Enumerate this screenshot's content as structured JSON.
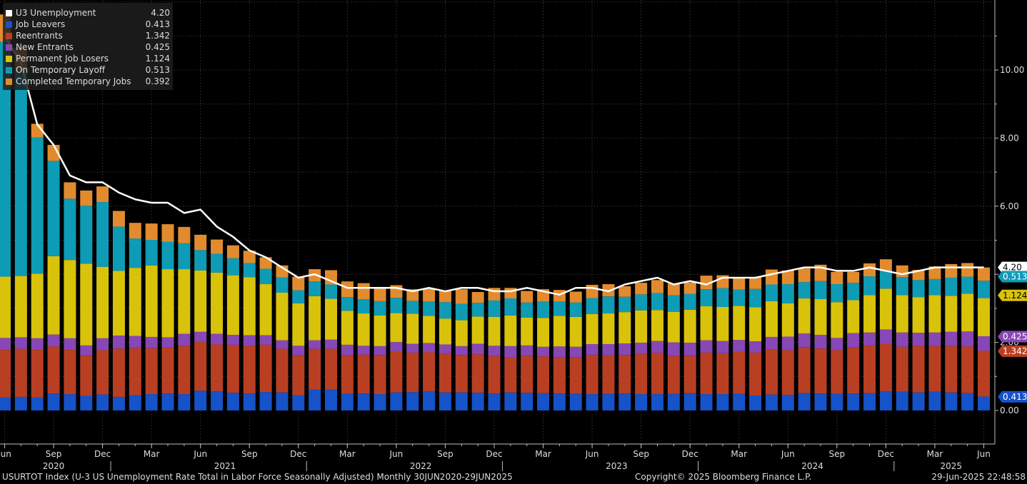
{
  "chart_data": {
    "type": "bar",
    "stacked": true,
    "title": "",
    "xlabel": "",
    "ylabel": "",
    "ylim": [
      0,
      12
    ],
    "grid": true,
    "legend_placement": "top-left",
    "y_ticks": [
      "0.00",
      "2.00",
      "4.00",
      "6.00",
      "8.00",
      "10.00"
    ],
    "x_tick_labels": [
      "Jun",
      "Sep",
      "Dec",
      "Mar",
      "Jun",
      "Sep",
      "Dec",
      "Mar",
      "Jun",
      "Sep",
      "Dec",
      "Mar",
      "Jun",
      "Sep",
      "Dec",
      "Mar",
      "Jun",
      "Sep",
      "Dec",
      "Mar",
      "Jun"
    ],
    "year_labels": [
      "2020",
      "2021",
      "2022",
      "2023",
      "2024",
      "2025"
    ],
    "categories": [
      "2020-06",
      "2020-07",
      "2020-08",
      "2020-09",
      "2020-10",
      "2020-11",
      "2020-12",
      "2021-01",
      "2021-02",
      "2021-03",
      "2021-04",
      "2021-05",
      "2021-06",
      "2021-07",
      "2021-08",
      "2021-09",
      "2021-10",
      "2021-11",
      "2021-12",
      "2022-01",
      "2022-02",
      "2022-03",
      "2022-04",
      "2022-05",
      "2022-06",
      "2022-07",
      "2022-08",
      "2022-09",
      "2022-10",
      "2022-11",
      "2022-12",
      "2023-01",
      "2023-02",
      "2023-03",
      "2023-04",
      "2023-05",
      "2023-06",
      "2023-07",
      "2023-08",
      "2023-09",
      "2023-10",
      "2023-11",
      "2023-12",
      "2024-01",
      "2024-02",
      "2024-03",
      "2024-04",
      "2024-05",
      "2024-06",
      "2024-07",
      "2024-08",
      "2024-09",
      "2024-10",
      "2024-11",
      "2024-12",
      "2025-01",
      "2025-02",
      "2025-03",
      "2025-04",
      "2025-05",
      "2025-06"
    ],
    "series": [
      {
        "name": "Job Leavers",
        "color": "#1652c8",
        "values": [
          0.38,
          0.4,
          0.38,
          0.5,
          0.48,
          0.43,
          0.47,
          0.4,
          0.45,
          0.48,
          0.5,
          0.48,
          0.58,
          0.56,
          0.52,
          0.5,
          0.54,
          0.53,
          0.45,
          0.61,
          0.61,
          0.49,
          0.5,
          0.48,
          0.53,
          0.54,
          0.56,
          0.53,
          0.53,
          0.52,
          0.5,
          0.53,
          0.52,
          0.51,
          0.5,
          0.49,
          0.48,
          0.49,
          0.5,
          0.48,
          0.48,
          0.49,
          0.51,
          0.48,
          0.48,
          0.49,
          0.44,
          0.47,
          0.46,
          0.51,
          0.5,
          0.49,
          0.5,
          0.51,
          0.56,
          0.55,
          0.53,
          0.55,
          0.53,
          0.51,
          0.41
        ]
      },
      {
        "name": "Reentrants",
        "color": "#b93f22",
        "values": [
          1.4,
          1.41,
          1.4,
          1.38,
          1.3,
          1.18,
          1.3,
          1.42,
          1.38,
          1.35,
          1.35,
          1.42,
          1.43,
          1.38,
          1.4,
          1.4,
          1.39,
          1.28,
          1.17,
          1.2,
          1.2,
          1.13,
          1.14,
          1.15,
          1.2,
          1.16,
          1.15,
          1.13,
          1.1,
          1.13,
          1.1,
          1.03,
          1.09,
          1.08,
          1.06,
          1.08,
          1.15,
          1.13,
          1.13,
          1.18,
          1.21,
          1.11,
          1.1,
          1.22,
          1.2,
          1.24,
          1.26,
          1.32,
          1.31,
          1.35,
          1.32,
          1.28,
          1.35,
          1.4,
          1.4,
          1.32,
          1.37,
          1.34,
          1.36,
          1.37,
          1.34
        ]
      },
      {
        "name": "New Entrants",
        "color": "#8747b5",
        "values": [
          0.35,
          0.34,
          0.34,
          0.35,
          0.34,
          0.3,
          0.35,
          0.38,
          0.36,
          0.33,
          0.3,
          0.35,
          0.3,
          0.31,
          0.3,
          0.31,
          0.28,
          0.25,
          0.28,
          0.25,
          0.27,
          0.31,
          0.26,
          0.26,
          0.28,
          0.26,
          0.27,
          0.28,
          0.26,
          0.31,
          0.3,
          0.33,
          0.3,
          0.28,
          0.32,
          0.3,
          0.32,
          0.33,
          0.34,
          0.33,
          0.35,
          0.4,
          0.38,
          0.36,
          0.36,
          0.34,
          0.33,
          0.37,
          0.4,
          0.4,
          0.4,
          0.36,
          0.42,
          0.38,
          0.42,
          0.42,
          0.38,
          0.4,
          0.42,
          0.44,
          0.43
        ]
      },
      {
        "name": "Permanent Job Losers",
        "color": "#d9c20a",
        "values": [
          1.8,
          1.8,
          1.9,
          2.3,
          2.3,
          2.4,
          2.1,
          1.9,
          2.0,
          2.1,
          2.0,
          1.9,
          1.8,
          1.8,
          1.75,
          1.7,
          1.5,
          1.4,
          1.25,
          1.3,
          1.2,
          1.0,
          0.95,
          0.9,
          0.85,
          0.88,
          0.8,
          0.76,
          0.76,
          0.8,
          0.85,
          0.9,
          0.82,
          0.85,
          0.9,
          0.88,
          0.88,
          0.9,
          0.92,
          0.95,
          0.91,
          0.9,
          0.97,
          1.0,
          1.0,
          1.0,
          1.0,
          1.05,
          0.98,
          1.03,
          1.05,
          1.05,
          0.97,
          1.1,
          1.2,
          1.1,
          1.05,
          1.1,
          1.06,
          1.11,
          1.12
        ]
      },
      {
        "name": "On Temporary Layoff",
        "color": "#0e9bb5",
        "values": [
          6.9,
          6.0,
          4.0,
          2.8,
          1.8,
          1.7,
          1.9,
          1.3,
          0.86,
          0.75,
          0.8,
          0.76,
          0.6,
          0.55,
          0.5,
          0.42,
          0.45,
          0.45,
          0.38,
          0.43,
          0.42,
          0.4,
          0.42,
          0.42,
          0.45,
          0.38,
          0.42,
          0.48,
          0.48,
          0.4,
          0.48,
          0.5,
          0.44,
          0.48,
          0.42,
          0.42,
          0.47,
          0.5,
          0.45,
          0.47,
          0.5,
          0.48,
          0.46,
          0.5,
          0.55,
          0.48,
          0.54,
          0.49,
          0.56,
          0.48,
          0.53,
          0.53,
          0.51,
          0.55,
          0.52,
          0.53,
          0.5,
          0.47,
          0.53,
          0.5,
          0.51
        ]
      },
      {
        "name": "Completed Temporary Jobs",
        "color": "#e28b2e",
        "values": [
          0.8,
          0.7,
          0.4,
          0.47,
          0.48,
          0.45,
          0.46,
          0.46,
          0.46,
          0.48,
          0.52,
          0.48,
          0.45,
          0.42,
          0.38,
          0.36,
          0.34,
          0.35,
          0.4,
          0.36,
          0.42,
          0.46,
          0.47,
          0.4,
          0.37,
          0.34,
          0.37,
          0.34,
          0.43,
          0.32,
          0.37,
          0.31,
          0.34,
          0.36,
          0.34,
          0.32,
          0.39,
          0.36,
          0.31,
          0.34,
          0.38,
          0.35,
          0.34,
          0.4,
          0.38,
          0.37,
          0.34,
          0.44,
          0.4,
          0.4,
          0.48,
          0.36,
          0.32,
          0.38,
          0.34,
          0.34,
          0.3,
          0.37,
          0.4,
          0.4,
          0.39
        ]
      }
    ],
    "line_series": {
      "name": "U3 Unemployment",
      "color": "#ffffff",
      "values": [
        11.0,
        10.2,
        8.4,
        7.8,
        6.9,
        6.7,
        6.7,
        6.4,
        6.2,
        6.1,
        6.1,
        5.8,
        5.9,
        5.4,
        5.1,
        4.7,
        4.5,
        4.2,
        3.9,
        4.0,
        3.8,
        3.6,
        3.6,
        3.6,
        3.6,
        3.5,
        3.6,
        3.5,
        3.6,
        3.6,
        3.5,
        3.5,
        3.6,
        3.5,
        3.4,
        3.6,
        3.6,
        3.5,
        3.7,
        3.8,
        3.9,
        3.7,
        3.8,
        3.7,
        3.9,
        3.9,
        3.9,
        4.0,
        4.1,
        4.2,
        4.2,
        4.1,
        4.1,
        4.2,
        4.1,
        4.0,
        4.1,
        4.2,
        4.2,
        4.2,
        4.2
      ]
    },
    "legend": [
      {
        "name": "U3 Unemployment",
        "value": "4.20",
        "color": "#ffffff"
      },
      {
        "name": "Job Leavers",
        "value": "0.413",
        "color": "#1652c8"
      },
      {
        "name": "Reentrants",
        "value": "1.342",
        "color": "#b93f22"
      },
      {
        "name": "New Entrants",
        "value": "0.425",
        "color": "#8747b5"
      },
      {
        "name": "Permanent Job Losers",
        "value": "1.124",
        "color": "#d9c20a"
      },
      {
        "name": "On Temporary Layoff",
        "value": "0.513",
        "color": "#0e9bb5"
      },
      {
        "name": "Completed Temporary Jobs",
        "value": "0.392",
        "color": "#e28b2e"
      }
    ],
    "value_tags": [
      {
        "label": "4.20",
        "level": 4.2,
        "bg": "#ffffff",
        "fg": "#000000"
      },
      {
        "label": "0.513",
        "level": 3.93,
        "bg": "#0e9bb5",
        "fg": "#ffffff"
      },
      {
        "label": "1.124",
        "level": 3.38,
        "bg": "#d9c20a",
        "fg": "#000000"
      },
      {
        "label": "0.425",
        "level": 2.17,
        "bg": "#8747b5",
        "fg": "#ffffff"
      },
      {
        "label": "1.342",
        "level": 1.74,
        "bg": "#b93f22",
        "fg": "#ffffff"
      },
      {
        "label": "0.413",
        "level": 0.4,
        "bg": "#1652c8",
        "fg": "#ffffff"
      }
    ]
  },
  "footer": {
    "index_text": "USURTOT Index (U-3 US Unemployment Rate Total in Labor Force Seasonally Adjusted)  Monthly 30JUN2020-29JUN2025",
    "copyright": "Copyright© 2025 Bloomberg Finance L.P.",
    "timestamp": "29-Jun-2025 22:48:58"
  }
}
